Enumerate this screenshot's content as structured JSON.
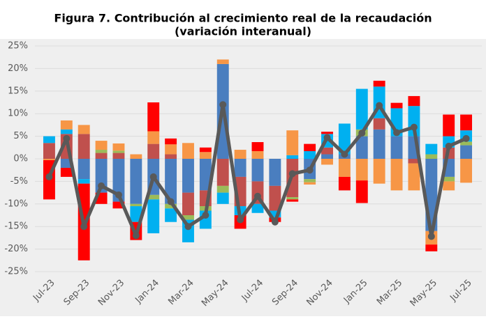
{
  "chart_data": {
    "type": "bar",
    "stacked": true,
    "title": "Figura 7.  Contribución al crecimiento real de la recaudación",
    "subtitle": "(variación interanual)",
    "categories": [
      "Jul-23",
      null,
      "Sep-23",
      null,
      "Nov-23",
      null,
      "Jan-24",
      null,
      "Mar-24",
      null,
      "May-24",
      null,
      "Jul-24",
      null,
      "Sep-24",
      null,
      "Nov-24",
      null,
      "Jan-25",
      null,
      "Mar-25",
      null,
      "May-25",
      null,
      "Jul-25"
    ],
    "ylim": [
      -25,
      25
    ],
    "yticks": [
      {
        "value": -25,
        "label": "-25%"
      },
      {
        "value": -20,
        "label": "-20%"
      },
      {
        "value": -15,
        "label": "-15%"
      },
      {
        "value": -10,
        "label": "-10%"
      },
      {
        "value": -5,
        "label": "-5%"
      },
      {
        "value": 0,
        "label": "0%"
      },
      {
        "value": 5,
        "label": "5%"
      },
      {
        "value": 10,
        "label": "10%"
      },
      {
        "value": 15,
        "label": "15%"
      },
      {
        "value": 20,
        "label": "20%"
      },
      {
        "value": 25,
        "label": "25%"
      }
    ],
    "grid": true,
    "series": [
      {
        "color": "#4a7ebf",
        "values": [
          0,
          -2,
          -4.5,
          -7.5,
          -9.5,
          -10,
          -8,
          -10,
          -7.5,
          -7,
          21,
          -4,
          -5,
          -6,
          0,
          -4.5,
          1,
          1,
          5,
          6.5,
          5,
          5,
          -16,
          -4,
          3
        ]
      },
      {
        "color": "#c0504d",
        "values": [
          3.5,
          5.5,
          5.5,
          1.3,
          1.3,
          0,
          3.3,
          1,
          -5,
          -3.5,
          -6,
          -6.5,
          -5,
          -5.5,
          -8.5,
          0,
          1.5,
          0,
          0,
          2.5,
          0,
          -1,
          0,
          2.5,
          0
        ]
      },
      {
        "color": "#9bbb59",
        "values": [
          0,
          0,
          0,
          0.7,
          0.5,
          -0.5,
          -1,
          -1,
          -1,
          -1,
          -1.5,
          0,
          0,
          0,
          -0.5,
          -0.7,
          0,
          0,
          1.5,
          0,
          0,
          0,
          1,
          -1,
          0.8
        ]
      },
      {
        "color": "#00b0f0",
        "values": [
          1.5,
          1,
          -1,
          0,
          0,
          -3.5,
          -7.5,
          -3,
          -5,
          -4,
          -2.5,
          -2,
          -2,
          -1.5,
          0.8,
          1.7,
          3,
          6.8,
          9,
          7,
          6.2,
          6.7,
          2.3,
          2.5,
          2.5
        ]
      },
      {
        "color": "#f79646",
        "values": [
          -0.3,
          2,
          2,
          2,
          1.6,
          1,
          2.8,
          2.2,
          3.5,
          1.5,
          1,
          2,
          1.7,
          0,
          5.5,
          -0.5,
          -1.3,
          -4,
          -4.8,
          -5.5,
          -7,
          -6,
          -3,
          -2,
          -5.3
        ]
      },
      {
        "color": "#ff0000",
        "values": [
          -8.7,
          -2,
          -17,
          -2.5,
          -1.5,
          -4,
          6.4,
          1.3,
          0,
          1,
          0,
          -3,
          2,
          -1,
          -0.5,
          1.6,
          0.5,
          -3,
          -5,
          1.3,
          1.2,
          2.2,
          -1.5,
          4.8,
          3.5
        ]
      },
      {
        "type": "line",
        "color": "#595959",
        "values": [
          -4,
          4.5,
          -15,
          -6,
          -8,
          -17,
          -4,
          -9.5,
          -15,
          -12.5,
          12,
          -13.5,
          -8.3,
          -14,
          -3.3,
          -2.5,
          4.7,
          1,
          5.7,
          11.8,
          5.8,
          7,
          -17.2,
          2.8,
          4.5
        ]
      }
    ]
  }
}
